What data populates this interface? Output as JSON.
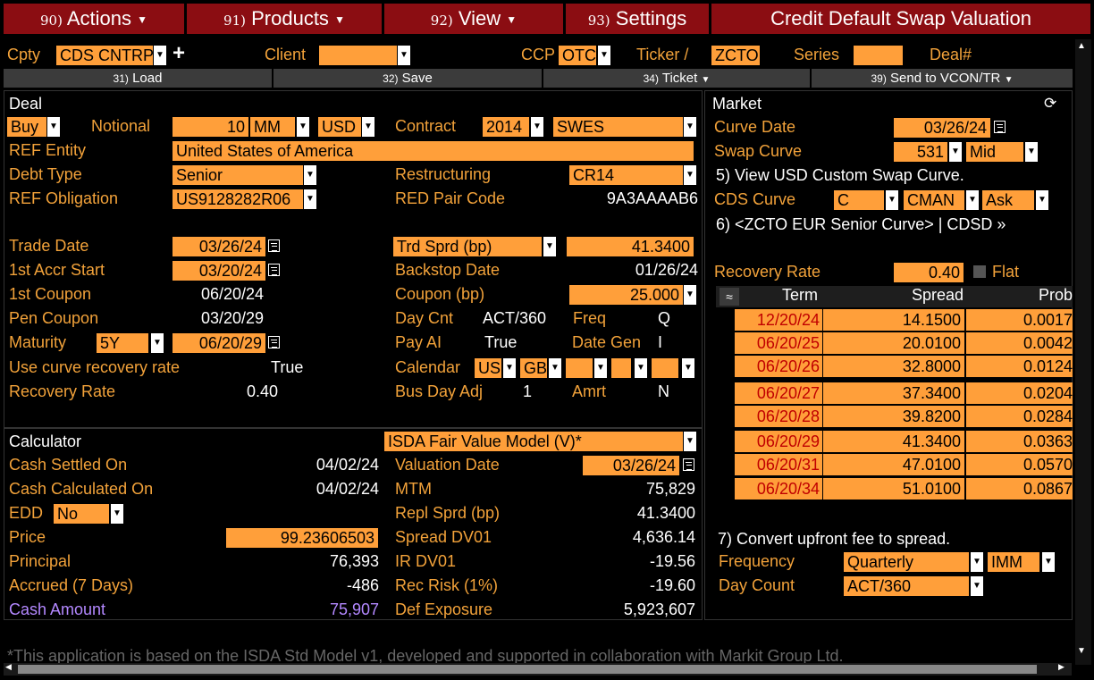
{
  "menu": {
    "actions": {
      "num": "90)",
      "label": "Actions"
    },
    "products": {
      "num": "91)",
      "label": "Products"
    },
    "view": {
      "num": "92)",
      "label": "View"
    },
    "settings": {
      "num": "93)",
      "label": "Settings"
    },
    "title": "Credit Default Swap Valuation"
  },
  "header": {
    "cpty_label": "Cpty",
    "cpty_value": "CDS CNTRP",
    "client_label": "Client",
    "client_value": "",
    "ccp_label": "CCP",
    "ccp_value": "OTC",
    "ticker_label": "Ticker /",
    "ticker_value": "ZCTO",
    "series_label": "Series",
    "series_value": "",
    "deal_label": "Deal#"
  },
  "buttons": {
    "load": {
      "num": "31)",
      "label": "Load"
    },
    "save": {
      "num": "32)",
      "label": "Save"
    },
    "ticket": {
      "num": "34)",
      "label": "Ticket"
    },
    "send": {
      "num": "39)",
      "label": "Send to VCON/TR"
    }
  },
  "deal": {
    "title": "Deal",
    "side": "Buy",
    "notional_label": "Notional",
    "notional": "10",
    "notional_unit": "MM",
    "currency": "USD",
    "contract_label": "Contract",
    "contract_year": "2014",
    "contract_type": "SWES",
    "ref_entity_label": "REF Entity",
    "ref_entity": "United States of America",
    "debt_type_label": "Debt Type",
    "debt_type": "Senior",
    "restructuring_label": "Restructuring",
    "restructuring": "CR14",
    "ref_obligation_label": "REF Obligation",
    "ref_obligation": "US9128282R06",
    "red_pair_label": "RED Pair Code",
    "red_pair": "9A3AAAAB6",
    "trade_date_label": "Trade Date",
    "trade_date": "03/26/24",
    "trd_sprd_label": "Trd Sprd (bp)",
    "trd_sprd": "41.3400",
    "accr_start_label": "1st Accr Start",
    "accr_start": "03/20/24",
    "backstop_label": "Backstop Date",
    "backstop": "01/26/24",
    "first_coupon_label": "1st Coupon",
    "first_coupon": "06/20/24",
    "coupon_label": "Coupon (bp)",
    "coupon": "25.000",
    "pen_coupon_label": "Pen Coupon",
    "pen_coupon": "03/20/29",
    "day_cnt_label": "Day Cnt",
    "day_cnt": "ACT/360",
    "freq_label": "Freq",
    "freq": "Q",
    "maturity_label": "Maturity",
    "maturity_tenor": "5Y",
    "maturity_date": "06/20/29",
    "pay_ai_label": "Pay AI",
    "pay_ai": "True",
    "date_gen_label": "Date Gen",
    "date_gen": "I",
    "use_curve_label": "Use curve recovery rate",
    "use_curve": "True",
    "calendar_label": "Calendar",
    "cal1": "US",
    "cal2": "GB",
    "recovery_label": "Recovery Rate",
    "recovery": "0.40",
    "bus_day_label": "Bus Day Adj",
    "bus_day": "1",
    "amrt_label": "Amrt",
    "amrt": "N"
  },
  "calculator": {
    "title": "Calculator",
    "model": "ISDA Fair Value Model (V)*",
    "cash_settled_label": "Cash Settled On",
    "cash_settled": "04/02/24",
    "valuation_date_label": "Valuation Date",
    "valuation_date": "03/26/24",
    "cash_calc_label": "Cash Calculated On",
    "cash_calc": "04/02/24",
    "mtm_label": "MTM",
    "mtm": "75,829",
    "edd_label": "EDD",
    "edd": "No",
    "repl_sprd_label": "Repl Sprd (bp)",
    "repl_sprd": "41.3400",
    "price_label": "Price",
    "price": "99.23606503",
    "spread_dv01_label": "Spread DV01",
    "spread_dv01": "4,636.14",
    "principal_label": "Principal",
    "principal": "76,393",
    "ir_dv01_label": "IR DV01",
    "ir_dv01": "-19.56",
    "accrued_label": "Accrued (7 Days)",
    "accrued": "-486",
    "rec_risk_label": "Rec Risk (1%)",
    "rec_risk": "-19.60",
    "cash_amount_label": "Cash Amount",
    "cash_amount": "75,907",
    "def_exposure_label": "Def Exposure",
    "def_exposure": "5,923,607"
  },
  "market": {
    "title": "Market",
    "curve_date_label": "Curve Date",
    "curve_date": "03/26/24",
    "swap_curve_label": "Swap Curve",
    "swap_curve": "531",
    "swap_side": "Mid",
    "view_swap_curve": "5) View USD Custom Swap Curve.",
    "cds_curve_label": "CDS Curve",
    "cds_curve": "C",
    "cds_source": "CMAN",
    "cds_side": "Ask",
    "curve_link": "6) <ZCTO EUR Senior Curve> | CDSD »",
    "recovery_label": "Recovery Rate",
    "recovery": "0.40",
    "flat_label": "Flat",
    "table_headers": [
      "Term",
      "Spread",
      "Prob"
    ],
    "rows": [
      {
        "term": "12/20/24",
        "spread": "14.1500",
        "prob": "0.0017"
      },
      {
        "term": "06/20/25",
        "spread": "20.0100",
        "prob": "0.0042"
      },
      {
        "term": "06/20/26",
        "spread": "32.8000",
        "prob": "0.0124"
      },
      {
        "term": "06/20/27",
        "spread": "37.3400",
        "prob": "0.0204"
      },
      {
        "term": "06/20/28",
        "spread": "39.8200",
        "prob": "0.0284"
      },
      {
        "term": "06/20/29",
        "spread": "41.3400",
        "prob": "0.0363"
      },
      {
        "term": "06/20/31",
        "spread": "47.0100",
        "prob": "0.0570"
      },
      {
        "term": "06/20/34",
        "spread": "51.0100",
        "prob": "0.0867"
      }
    ],
    "convert_label": "7) Convert upfront fee to spread.",
    "frequency_label": "Frequency",
    "frequency": "Quarterly",
    "imm": "IMM",
    "day_count_label": "Day Count",
    "day_count": "ACT/360"
  },
  "footer": "*This application is based on the ISDA Std Model v1, developed and supported in collaboration with Markit Group Ltd.",
  "colors": {
    "accent": "#ff9f3a",
    "menu_bg": "#8b0d12",
    "label": "#f2a23a",
    "cash_amount": "#b388ff"
  }
}
